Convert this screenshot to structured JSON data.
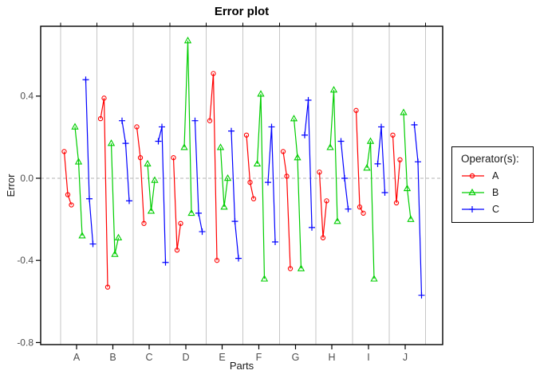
{
  "chart_data": {
    "type": "line",
    "title": "Error plot",
    "xlabel": "Parts",
    "ylabel": "Error",
    "parts": [
      "A",
      "B",
      "C",
      "D",
      "E",
      "F",
      "G",
      "H",
      "I",
      "J"
    ],
    "ylim": [
      -0.81,
      0.74
    ],
    "yticks": {
      "values": [
        -0.8,
        -0.4,
        0.0,
        0.4
      ],
      "labels": [
        "-0.8",
        "-0.4",
        "0.0",
        "0.4"
      ]
    },
    "grid": {
      "vertical_part_separators": true,
      "zero_line_dashed": true
    },
    "replicates_per_operator": 3,
    "operators": [
      {
        "name": "A",
        "color": "#FF0000",
        "marker": "circle"
      },
      {
        "name": "B",
        "color": "#00CD00",
        "marker": "triangle"
      },
      {
        "name": "C",
        "color": "#0000FF",
        "marker": "plus"
      }
    ],
    "series": [
      {
        "name": "A",
        "values_by_part": [
          [
            0.13,
            -0.08,
            -0.13
          ],
          [
            0.29,
            0.39,
            -0.53
          ],
          [
            0.25,
            0.1,
            -0.22
          ],
          [
            0.1,
            -0.35,
            -0.22
          ],
          [
            0.28,
            0.51,
            -0.4
          ],
          [
            0.21,
            -0.02,
            -0.1
          ],
          [
            0.13,
            0.01,
            -0.44
          ],
          [
            0.03,
            -0.29,
            -0.11
          ],
          [
            0.33,
            -0.14,
            -0.17
          ],
          [
            0.21,
            -0.12,
            0.09
          ]
        ]
      },
      {
        "name": "B",
        "values_by_part": [
          [
            0.25,
            0.08,
            -0.28
          ],
          [
            0.17,
            -0.37,
            -0.29
          ],
          [
            0.07,
            -0.16,
            -0.01
          ],
          [
            0.15,
            0.67,
            -0.17
          ],
          [
            0.15,
            -0.14,
            0.0
          ],
          [
            0.07,
            0.41,
            -0.49
          ],
          [
            0.29,
            0.1,
            -0.44
          ],
          [
            0.15,
            0.43,
            -0.21
          ],
          [
            0.05,
            0.18,
            -0.49
          ],
          [
            0.32,
            -0.05,
            -0.2
          ]
        ]
      },
      {
        "name": "C",
        "values_by_part": [
          [
            0.48,
            -0.1,
            -0.32
          ],
          [
            0.28,
            0.17,
            -0.11
          ],
          [
            0.18,
            0.25,
            -0.41
          ],
          [
            0.28,
            -0.17,
            -0.26
          ],
          [
            0.23,
            -0.21,
            -0.39
          ],
          [
            -0.02,
            0.25,
            -0.31
          ],
          [
            0.21,
            0.38,
            -0.24
          ],
          [
            0.18,
            0.0,
            -0.15
          ],
          [
            0.07,
            0.25,
            -0.07
          ],
          [
            0.26,
            0.08,
            -0.57
          ]
        ]
      }
    ]
  },
  "legend": {
    "title": "Operator(s):",
    "entries": [
      {
        "label": "A",
        "marker": "circle"
      },
      {
        "label": "B",
        "marker": "triangle"
      },
      {
        "label": "C",
        "marker": "plus"
      }
    ]
  },
  "colors": {
    "operator_a": "#FF0000",
    "operator_b": "#00CD00",
    "operator_c": "#0000FF",
    "gridline": "#C6C6C6",
    "zero_line": "#B3B3B3",
    "plot_border": "#000000",
    "tick_label": "#4d4d4d"
  }
}
